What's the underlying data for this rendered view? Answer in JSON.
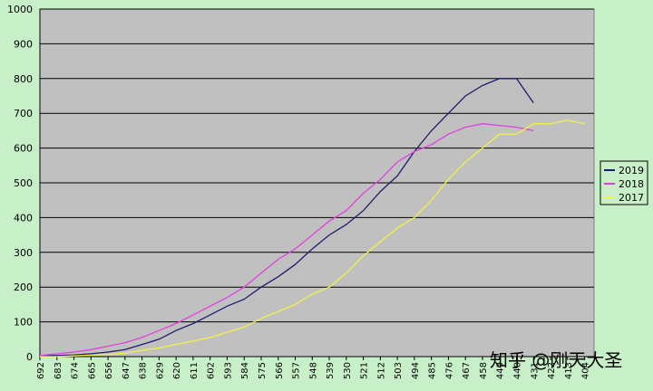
{
  "chart_data": {
    "type": "line",
    "x": [
      692,
      683,
      674,
      665,
      656,
      647,
      638,
      629,
      620,
      611,
      602,
      593,
      584,
      575,
      566,
      557,
      548,
      539,
      530,
      521,
      512,
      503,
      494,
      485,
      476,
      467,
      458,
      449,
      440,
      431,
      422,
      413,
      404
    ],
    "xlim": [
      692,
      399
    ],
    "xticks": [
      692,
      683,
      674,
      665,
      656,
      647,
      638,
      629,
      620,
      611,
      602,
      593,
      584,
      575,
      566,
      557,
      548,
      539,
      530,
      521,
      512,
      503,
      494,
      485,
      476,
      467,
      458,
      449,
      440,
      431,
      422,
      413,
      404
    ],
    "ylim": [
      0,
      1000
    ],
    "yticks": [
      0,
      100,
      200,
      300,
      400,
      500,
      600,
      700,
      800,
      900,
      1000
    ],
    "grid": true,
    "legend": "right",
    "series": [
      {
        "name": "2019",
        "color": "#1c1c70",
        "values": [
          2,
          3,
          5,
          8,
          13,
          20,
          35,
          50,
          75,
          95,
          120,
          145,
          165,
          200,
          230,
          265,
          310,
          350,
          380,
          420,
          475,
          520,
          590,
          650,
          700,
          750,
          780,
          800,
          800,
          730,
          null,
          null,
          null
        ]
      },
      {
        "name": "2018",
        "color": "#e040e0",
        "values": [
          3,
          8,
          13,
          20,
          30,
          40,
          55,
          75,
          95,
          120,
          145,
          170,
          200,
          240,
          280,
          310,
          350,
          390,
          420,
          470,
          510,
          560,
          590,
          610,
          640,
          660,
          670,
          665,
          660,
          650,
          null,
          null,
          null
        ]
      },
      {
        "name": "2017",
        "color": "#f2f244",
        "values": [
          0,
          0,
          2,
          4,
          6,
          10,
          18,
          25,
          35,
          45,
          55,
          70,
          85,
          110,
          130,
          150,
          180,
          200,
          240,
          290,
          330,
          370,
          400,
          450,
          510,
          560,
          600,
          640,
          640,
          670,
          670,
          680,
          670
        ]
      }
    ],
    "watermark": "知乎 @刚天大圣"
  }
}
